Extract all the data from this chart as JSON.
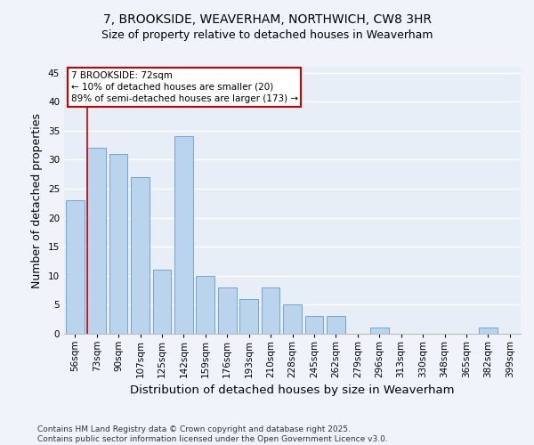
{
  "title1": "7, BROOKSIDE, WEAVERHAM, NORTHWICH, CW8 3HR",
  "title2": "Size of property relative to detached houses in Weaverham",
  "xlabel": "Distribution of detached houses by size in Weaverham",
  "ylabel": "Number of detached properties",
  "categories": [
    "56sqm",
    "73sqm",
    "90sqm",
    "107sqm",
    "125sqm",
    "142sqm",
    "159sqm",
    "176sqm",
    "193sqm",
    "210sqm",
    "228sqm",
    "245sqm",
    "262sqm",
    "279sqm",
    "296sqm",
    "313sqm",
    "330sqm",
    "348sqm",
    "365sqm",
    "382sqm",
    "399sqm"
  ],
  "values": [
    23,
    32,
    31,
    27,
    11,
    34,
    10,
    8,
    6,
    8,
    5,
    3,
    3,
    0,
    1,
    0,
    0,
    0,
    0,
    1,
    0
  ],
  "bar_color": "#bad4ee",
  "bar_edge_color": "#6699cc",
  "bg_color": "#e8eef8",
  "fig_bg_color": "#f0f4fa",
  "grid_color": "#ffffff",
  "annotation_text": "7 BROOKSIDE: 72sqm\n← 10% of detached houses are smaller (20)\n89% of semi-detached houses are larger (173) →",
  "annotation_box_color": "#ffffff",
  "annotation_box_edge": "#cc0000",
  "vline_color": "#cc0000",
  "ylim": [
    0,
    46
  ],
  "yticks": [
    0,
    5,
    10,
    15,
    20,
    25,
    30,
    35,
    40,
    45
  ],
  "footer": "Contains HM Land Registry data © Crown copyright and database right 2025.\nContains public sector information licensed under the Open Government Licence v3.0.",
  "title_fontsize": 10,
  "subtitle_fontsize": 9,
  "axis_label_fontsize": 9,
  "tick_fontsize": 7.5,
  "annotation_fontsize": 7.5,
  "footer_fontsize": 6.5
}
